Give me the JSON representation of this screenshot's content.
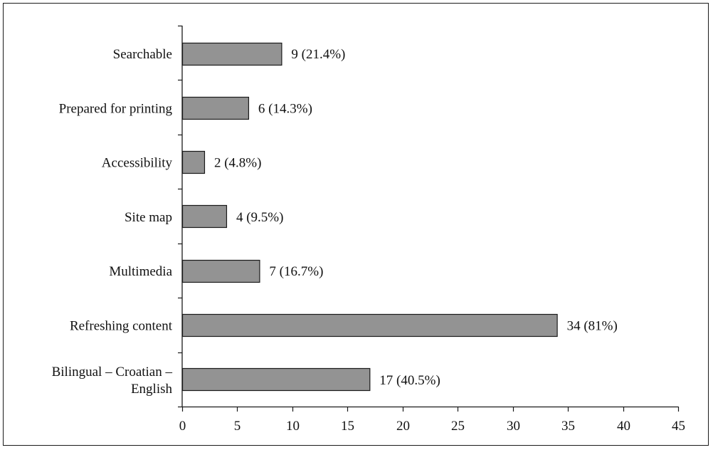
{
  "chart_data": {
    "type": "bar",
    "orientation": "horizontal",
    "title": "",
    "xlabel": "",
    "ylabel": "",
    "categories": [
      "Searchable",
      "Prepared for printing",
      "Accessibility",
      "Site map",
      "Multimedia",
      "Refreshing content",
      "Bilingual – Croatian – English"
    ],
    "category_lines": [
      [
        "Searchable"
      ],
      [
        "Prepared for printing"
      ],
      [
        "Accessibility"
      ],
      [
        "Site map"
      ],
      [
        "Multimedia"
      ],
      [
        "Refreshing content"
      ],
      [
        "Bilingual – Croatian –",
        "English"
      ]
    ],
    "values": [
      9,
      6,
      2,
      4,
      7,
      34,
      17
    ],
    "data_labels": [
      "9 (21.4%)",
      "6 (14.3%)",
      "2 (4.8%)",
      "4 (9.5%)",
      "7 (16.7%)",
      "34 (81%)",
      "17 (40.5%)"
    ],
    "xlim": [
      0,
      45
    ],
    "xticks": [
      0,
      5,
      10,
      15,
      20,
      25,
      30,
      35,
      40,
      45
    ],
    "grid": false,
    "legend": "none",
    "colors": {
      "bar_fill": "#939393",
      "bar_stroke": "#1a1a1a",
      "axis": "#1a1a1a"
    }
  }
}
